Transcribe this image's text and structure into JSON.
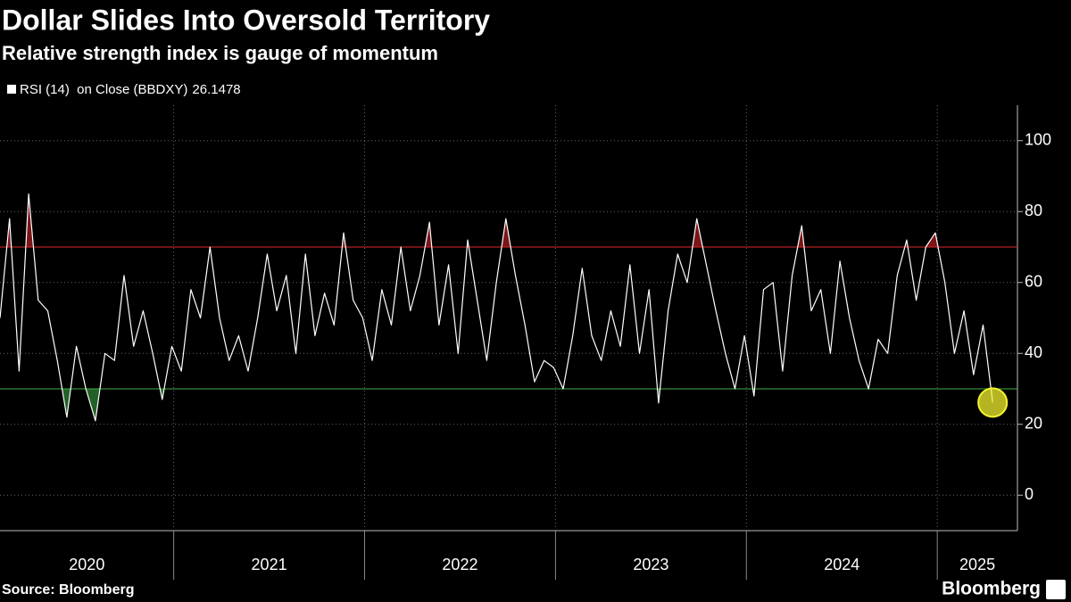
{
  "chart_data": {
    "type": "line",
    "title": "Dollar Slides Into Oversold Territory",
    "subtitle": "Relative strength index is gauge of momentum",
    "source": "Source: Bloomberg",
    "brand": "Bloomberg",
    "x": [
      2020.09,
      2020.14,
      2020.19,
      2020.24,
      2020.29,
      2020.34,
      2020.39,
      2020.44,
      2020.49,
      2020.54,
      2020.59,
      2020.64,
      2020.69,
      2020.74,
      2020.79,
      2020.84,
      2020.89,
      2020.94,
      2020.99,
      2021.04,
      2021.09,
      2021.14,
      2021.19,
      2021.24,
      2021.29,
      2021.34,
      2021.39,
      2021.44,
      2021.49,
      2021.54,
      2021.59,
      2021.64,
      2021.69,
      2021.74,
      2021.79,
      2021.84,
      2021.89,
      2021.94,
      2021.99,
      2022.04,
      2022.09,
      2022.14,
      2022.19,
      2022.24,
      2022.29,
      2022.34,
      2022.39,
      2022.44,
      2022.49,
      2022.54,
      2022.59,
      2022.64,
      2022.69,
      2022.74,
      2022.79,
      2022.84,
      2022.89,
      2022.94,
      2022.99,
      2023.04,
      2023.09,
      2023.14,
      2023.19,
      2023.24,
      2023.29,
      2023.34,
      2023.39,
      2023.44,
      2023.49,
      2023.54,
      2023.59,
      2023.64,
      2023.69,
      2023.74,
      2023.79,
      2023.84,
      2023.89,
      2023.94,
      2023.99,
      2024.04,
      2024.09,
      2024.14,
      2024.19,
      2024.24,
      2024.29,
      2024.34,
      2024.39,
      2024.44,
      2024.49,
      2024.54,
      2024.59,
      2024.64,
      2024.69,
      2024.74,
      2024.79,
      2024.84,
      2024.89,
      2024.94,
      2024.99,
      2025.04,
      2025.09,
      2025.14,
      2025.19,
      2025.24,
      2025.29
    ],
    "series": [
      {
        "name": "RSI (14)  on Close (BBDXY)",
        "color": "#ffffff",
        "values": [
          50,
          78,
          35,
          85,
          55,
          52,
          38,
          22,
          42,
          30,
          21,
          40,
          38,
          62,
          42,
          52,
          40,
          27,
          42,
          35,
          58,
          50,
          70,
          50,
          38,
          45,
          35,
          50,
          68,
          52,
          62,
          40,
          68,
          45,
          57,
          48,
          74,
          55,
          50,
          38,
          58,
          48,
          70,
          52,
          62,
          77,
          48,
          65,
          40,
          72,
          55,
          38,
          60,
          78,
          62,
          48,
          32,
          38,
          36,
          30,
          45,
          64,
          45,
          38,
          52,
          42,
          65,
          40,
          58,
          26,
          52,
          68,
          60,
          78,
          65,
          52,
          40,
          30,
          45,
          28,
          58,
          60,
          35,
          62,
          76,
          52,
          58,
          40,
          66,
          50,
          38,
          30,
          44,
          40,
          62,
          72,
          55,
          70,
          74,
          60,
          40,
          52,
          34,
          48,
          26.1478
        ]
      }
    ],
    "overbought": {
      "value": 70,
      "color": "#e0262b"
    },
    "oversold": {
      "value": 30,
      "color": "#3fae49"
    },
    "highlight_color": "#f2f230",
    "xlim": [
      2020.09,
      2025.42
    ],
    "xticks": [
      {
        "value": 2020,
        "label": "2020"
      },
      {
        "value": 2021,
        "label": "2021"
      },
      {
        "value": 2022,
        "label": "2022"
      },
      {
        "value": 2023,
        "label": "2023"
      },
      {
        "value": 2024,
        "label": "2024"
      },
      {
        "value": 2025,
        "label": "2025"
      }
    ],
    "ylim": [
      -10,
      110
    ],
    "yticks": [
      0,
      20,
      40,
      60,
      80,
      100
    ],
    "grid": true
  }
}
